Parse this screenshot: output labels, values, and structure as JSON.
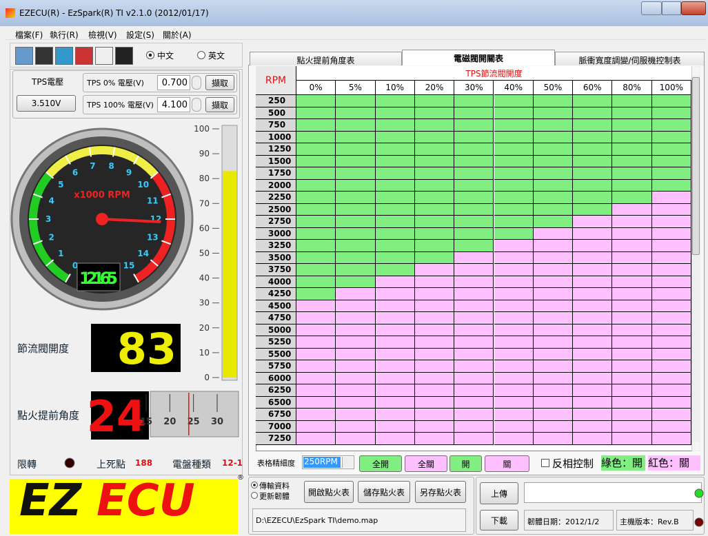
{
  "window": {
    "title": "EZECU(R) - EzSpark(R) TI v2.1.0 (2012/01/17)"
  },
  "menu": [
    "檔案(F)",
    "執行(R)",
    "檢視(V)",
    "設定(S)",
    "關於(A)"
  ],
  "language": [
    {
      "label": "中文",
      "selected": true
    },
    {
      "label": "英文",
      "selected": false
    }
  ],
  "tps": {
    "label": "TPS電壓",
    "voltage": "3.510V",
    "zero_label": "TPS  0% 電壓(V)",
    "zero_value": "0.700",
    "full_label": "TPS 100% 電壓(V)",
    "full_value": "4.100",
    "capture": "擷取"
  },
  "gauge": {
    "unit": "x1000 RPM",
    "scale": [
      0,
      1,
      2,
      3,
      4,
      5,
      6,
      7,
      8,
      9,
      10,
      11,
      12,
      13,
      14,
      15
    ],
    "rpm_display": "12165"
  },
  "throttle": {
    "label": "節流閥開度",
    "value": 83,
    "scale": [
      0,
      10,
      20,
      30,
      40,
      50,
      60,
      70,
      80,
      90,
      100
    ]
  },
  "ignition": {
    "label": "點火提前角度",
    "value": 24,
    "scale": [
      15,
      20,
      25,
      30
    ]
  },
  "status": {
    "limit": "限轉",
    "tdc_label": "上死點",
    "tdc_value": "188",
    "trigger_label": "電盤種類",
    "trigger_value": "12-1"
  },
  "logo": {
    "left": "EZ",
    "right": "ECU",
    "mark": "®"
  },
  "tabs": [
    "點火提前角度表",
    "電磁閥開關表",
    "脈衝寬度調變/伺服機控制表"
  ],
  "active_tab": 1,
  "table": {
    "rpm_header": "RPM",
    "tps_header": "TPS節流閥開度",
    "columns": [
      "0%",
      "5%",
      "10%",
      "20%",
      "30%",
      "40%",
      "50%",
      "60%",
      "80%",
      "100%"
    ],
    "rows": [
      {
        "rpm": "250",
        "cells": [
          1,
          1,
          1,
          1,
          1,
          1,
          1,
          1,
          1,
          1
        ]
      },
      {
        "rpm": "500",
        "cells": [
          1,
          1,
          1,
          1,
          1,
          1,
          1,
          1,
          1,
          1
        ]
      },
      {
        "rpm": "750",
        "cells": [
          1,
          1,
          1,
          1,
          1,
          1,
          1,
          1,
          1,
          1
        ]
      },
      {
        "rpm": "1000",
        "cells": [
          1,
          1,
          1,
          1,
          1,
          1,
          1,
          1,
          1,
          1
        ]
      },
      {
        "rpm": "1250",
        "cells": [
          1,
          1,
          1,
          1,
          1,
          1,
          1,
          1,
          1,
          1
        ]
      },
      {
        "rpm": "1500",
        "cells": [
          1,
          1,
          1,
          1,
          1,
          1,
          1,
          1,
          1,
          1
        ]
      },
      {
        "rpm": "1750",
        "cells": [
          1,
          1,
          1,
          1,
          1,
          1,
          1,
          1,
          1,
          1
        ]
      },
      {
        "rpm": "2000",
        "cells": [
          1,
          1,
          1,
          1,
          1,
          1,
          1,
          1,
          1,
          1
        ]
      },
      {
        "rpm": "2250",
        "cells": [
          1,
          1,
          1,
          1,
          1,
          1,
          1,
          1,
          1,
          0
        ]
      },
      {
        "rpm": "2500",
        "cells": [
          1,
          1,
          1,
          1,
          1,
          1,
          1,
          1,
          0,
          0
        ]
      },
      {
        "rpm": "2750",
        "cells": [
          1,
          1,
          1,
          1,
          1,
          1,
          1,
          0,
          0,
          0
        ]
      },
      {
        "rpm": "3000",
        "cells": [
          1,
          1,
          1,
          1,
          1,
          1,
          0,
          0,
          0,
          0
        ]
      },
      {
        "rpm": "3250",
        "cells": [
          1,
          1,
          1,
          1,
          1,
          0,
          0,
          0,
          0,
          0
        ]
      },
      {
        "rpm": "3500",
        "cells": [
          1,
          1,
          1,
          1,
          0,
          0,
          0,
          0,
          0,
          0
        ]
      },
      {
        "rpm": "3750",
        "cells": [
          1,
          1,
          1,
          0,
          0,
          0,
          0,
          0,
          0,
          0
        ]
      },
      {
        "rpm": "4000",
        "cells": [
          1,
          1,
          0,
          0,
          0,
          0,
          0,
          0,
          0,
          0
        ]
      },
      {
        "rpm": "4250",
        "cells": [
          1,
          0,
          0,
          0,
          0,
          0,
          0,
          0,
          0,
          0
        ]
      },
      {
        "rpm": "4500",
        "cells": [
          0,
          0,
          0,
          0,
          0,
          0,
          0,
          0,
          0,
          0
        ]
      },
      {
        "rpm": "4750",
        "cells": [
          0,
          0,
          0,
          0,
          0,
          0,
          0,
          0,
          0,
          0
        ]
      },
      {
        "rpm": "5000",
        "cells": [
          0,
          0,
          0,
          0,
          0,
          0,
          0,
          0,
          0,
          0
        ]
      },
      {
        "rpm": "5250",
        "cells": [
          0,
          0,
          0,
          0,
          0,
          0,
          0,
          0,
          0,
          0
        ]
      },
      {
        "rpm": "5500",
        "cells": [
          0,
          0,
          0,
          0,
          0,
          0,
          0,
          0,
          0,
          0
        ]
      },
      {
        "rpm": "5750",
        "cells": [
          0,
          0,
          0,
          0,
          0,
          0,
          0,
          0,
          0,
          0
        ]
      },
      {
        "rpm": "6000",
        "cells": [
          0,
          0,
          0,
          0,
          0,
          0,
          0,
          0,
          0,
          0
        ]
      },
      {
        "rpm": "6250",
        "cells": [
          0,
          0,
          0,
          0,
          0,
          0,
          0,
          0,
          0,
          0
        ]
      },
      {
        "rpm": "6500",
        "cells": [
          0,
          0,
          0,
          0,
          0,
          0,
          0,
          0,
          0,
          0
        ]
      },
      {
        "rpm": "6750",
        "cells": [
          0,
          0,
          0,
          0,
          0,
          0,
          0,
          0,
          0,
          0
        ]
      },
      {
        "rpm": "7000",
        "cells": [
          0,
          0,
          0,
          0,
          0,
          0,
          0,
          0,
          0,
          0
        ]
      },
      {
        "rpm": "7250",
        "cells": [
          0,
          0,
          0,
          0,
          0,
          0,
          0,
          0,
          0,
          0
        ]
      }
    ],
    "on_color": "#80ee80",
    "off_color": "#ffc0ff"
  },
  "controls": {
    "resolution_label": "表格精細度",
    "resolution": "250RPM",
    "all_on": "全開",
    "all_off": "全關",
    "on": "開",
    "off": "關",
    "invert": "反相控制",
    "legend_on": "綠色：開",
    "legend_off": "紅色：關"
  },
  "bottom": {
    "modes": [
      {
        "label": "傳輸資料",
        "selected": true
      },
      {
        "label": "更新韌體",
        "selected": false
      }
    ],
    "open": "開啟點火表",
    "save": "儲存點火表",
    "save_as": "另存點火表",
    "path": "D:\\EZECU\\EzSpark TI\\demo.map",
    "upload": "上傳",
    "download": "下載",
    "firmware": "韌體日期：2012/1/2",
    "hardware": "主機版本：Rev.B"
  }
}
